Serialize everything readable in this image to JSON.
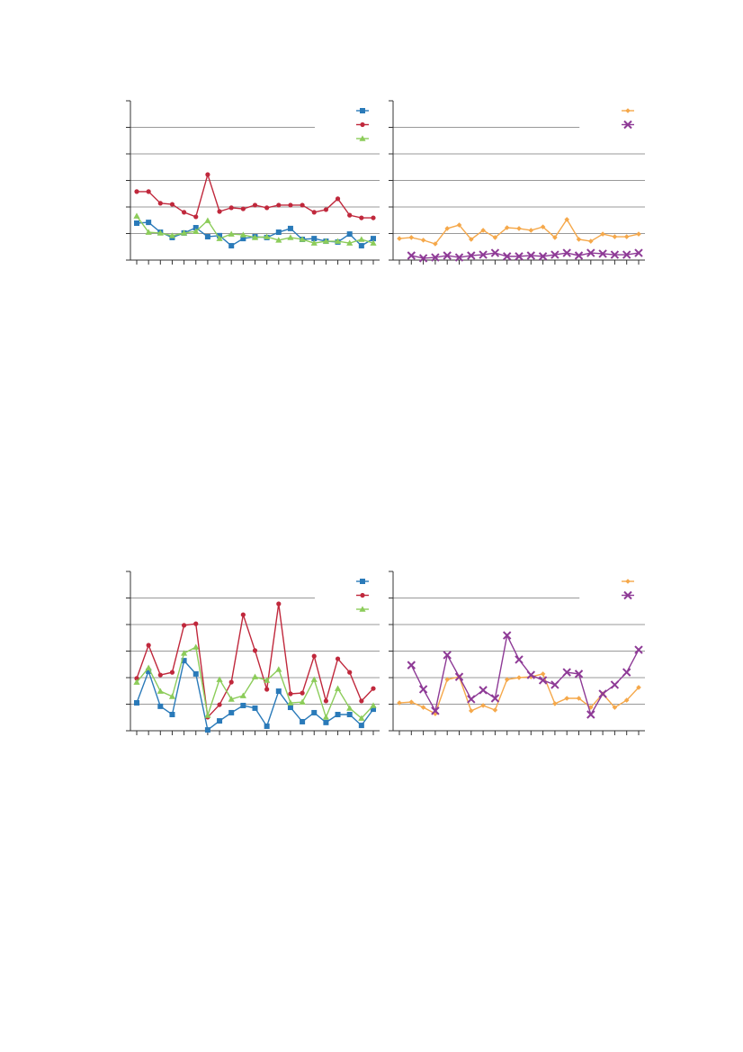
{
  "chart_data": [
    {
      "type": "line",
      "categories": [
        null,
        null,
        null,
        null,
        null,
        null,
        null,
        null,
        null,
        null,
        null,
        null,
        null,
        null,
        null,
        null,
        null,
        null,
        null,
        null,
        null
      ],
      "ylim": [
        0,
        6
      ],
      "yticks": [
        0,
        1,
        2,
        3,
        4,
        5,
        6
      ],
      "grid": true,
      "series": [
        {
          "color": "#2a7ab9",
          "marker": "square",
          "values": [
            1.39,
            1.42,
            1.05,
            0.85,
            1.02,
            1.22,
            0.88,
            0.92,
            0.54,
            0.81,
            0.88,
            0.85,
            1.05,
            1.19,
            0.78,
            0.81,
            0.71,
            0.68,
            0.98,
            0.54,
            0.81
          ]
        },
        {
          "color": "#c0283c",
          "marker": "circle",
          "values": [
            2.58,
            2.58,
            2.14,
            2.1,
            1.8,
            1.63,
            3.22,
            1.83,
            1.97,
            1.93,
            2.07,
            1.97,
            2.07,
            2.07,
            2.07,
            1.8,
            1.9,
            2.31,
            1.69,
            1.59,
            1.59
          ]
        },
        {
          "color": "#8ccc5a",
          "marker": "triangle",
          "values": [
            1.66,
            1.05,
            1.02,
            0.92,
            1.02,
            1.08,
            1.49,
            0.81,
            0.98,
            0.95,
            0.85,
            0.88,
            0.75,
            0.85,
            0.78,
            0.64,
            0.71,
            0.71,
            0.64,
            0.78,
            0.64
          ]
        }
      ]
    },
    {
      "type": "line",
      "categories": [
        null,
        null,
        null,
        null,
        null,
        null,
        null,
        null,
        null,
        null,
        null,
        null,
        null,
        null,
        null,
        null,
        null,
        null,
        null,
        null,
        null
      ],
      "ylim": [
        0,
        6
      ],
      "yticks": [
        0,
        1,
        2,
        3,
        4,
        5,
        6
      ],
      "grid": true,
      "series": [
        {
          "color": "#f5a84a",
          "marker": "diamond",
          "values": [
            0.81,
            0.85,
            0.75,
            0.61,
            1.19,
            1.32,
            0.78,
            1.12,
            0.85,
            1.22,
            1.19,
            1.12,
            1.25,
            0.85,
            1.53,
            0.78,
            0.71,
            0.98,
            0.88,
            0.88,
            0.98
          ]
        },
        {
          "color": "#8e3a96",
          "marker": "x",
          "values": [
            null,
            0.17,
            0.07,
            0.1,
            0.17,
            0.1,
            0.17,
            0.2,
            0.27,
            0.14,
            0.14,
            0.17,
            0.14,
            0.2,
            0.27,
            0.17,
            0.27,
            0.24,
            0.2,
            0.2,
            0.27
          ]
        }
      ]
    },
    {
      "type": "line",
      "categories": [
        null,
        null,
        null,
        null,
        null,
        null,
        null,
        null,
        null,
        null,
        null,
        null,
        null,
        null,
        null,
        null,
        null,
        null,
        null,
        null,
        null
      ],
      "ylim": [
        0,
        6
      ],
      "yticks": [
        0,
        1,
        2,
        3,
        4,
        5,
        6
      ],
      "grid": true,
      "series": [
        {
          "color": "#2a7ab9",
          "marker": "square",
          "values": [
            1.05,
            2.24,
            0.92,
            0.61,
            2.64,
            2.14,
            0.03,
            0.37,
            0.68,
            0.95,
            0.85,
            0.17,
            1.49,
            0.88,
            0.34,
            0.68,
            0.31,
            0.61,
            0.61,
            0.2,
            0.81
          ]
        },
        {
          "color": "#c0283c",
          "marker": "circle",
          "values": [
            1.97,
            3.22,
            2.1,
            2.2,
            3.97,
            4.03,
            0.51,
            0.98,
            1.83,
            4.37,
            3.02,
            1.56,
            4.78,
            1.39,
            1.42,
            2.81,
            1.12,
            2.71,
            2.2,
            1.12,
            1.59
          ]
        },
        {
          "color": "#8ccc5a",
          "marker": "triangle",
          "values": [
            1.83,
            2.37,
            1.49,
            1.29,
            2.92,
            3.15,
            0.58,
            1.93,
            1.19,
            1.32,
            2.03,
            1.9,
            2.31,
            1.05,
            1.08,
            1.93,
            0.51,
            1.59,
            0.85,
            0.47,
            0.95
          ]
        }
      ]
    },
    {
      "type": "line",
      "categories": [
        null,
        null,
        null,
        null,
        null,
        null,
        null,
        null,
        null,
        null,
        null,
        null,
        null,
        null,
        null,
        null,
        null,
        null,
        null,
        null,
        null
      ],
      "ylim": [
        0,
        6
      ],
      "yticks": [
        0,
        1,
        2,
        3,
        4,
        5,
        6
      ],
      "grid": true,
      "series": [
        {
          "color": "#f5a84a",
          "marker": "diamond",
          "values": [
            1.05,
            1.08,
            0.88,
            0.64,
            1.93,
            2.03,
            0.75,
            0.95,
            0.78,
            1.93,
            2.0,
            2.03,
            2.14,
            1.02,
            1.22,
            1.22,
            0.88,
            1.39,
            0.88,
            1.15,
            1.63
          ]
        },
        {
          "color": "#8e3a96",
          "marker": "x",
          "values": [
            null,
            2.47,
            1.56,
            0.75,
            2.85,
            2.03,
            1.19,
            1.53,
            1.22,
            3.59,
            2.68,
            2.1,
            1.9,
            1.73,
            2.2,
            2.14,
            0.61,
            1.39,
            1.73,
            2.2,
            3.05
          ]
        }
      ]
    }
  ]
}
